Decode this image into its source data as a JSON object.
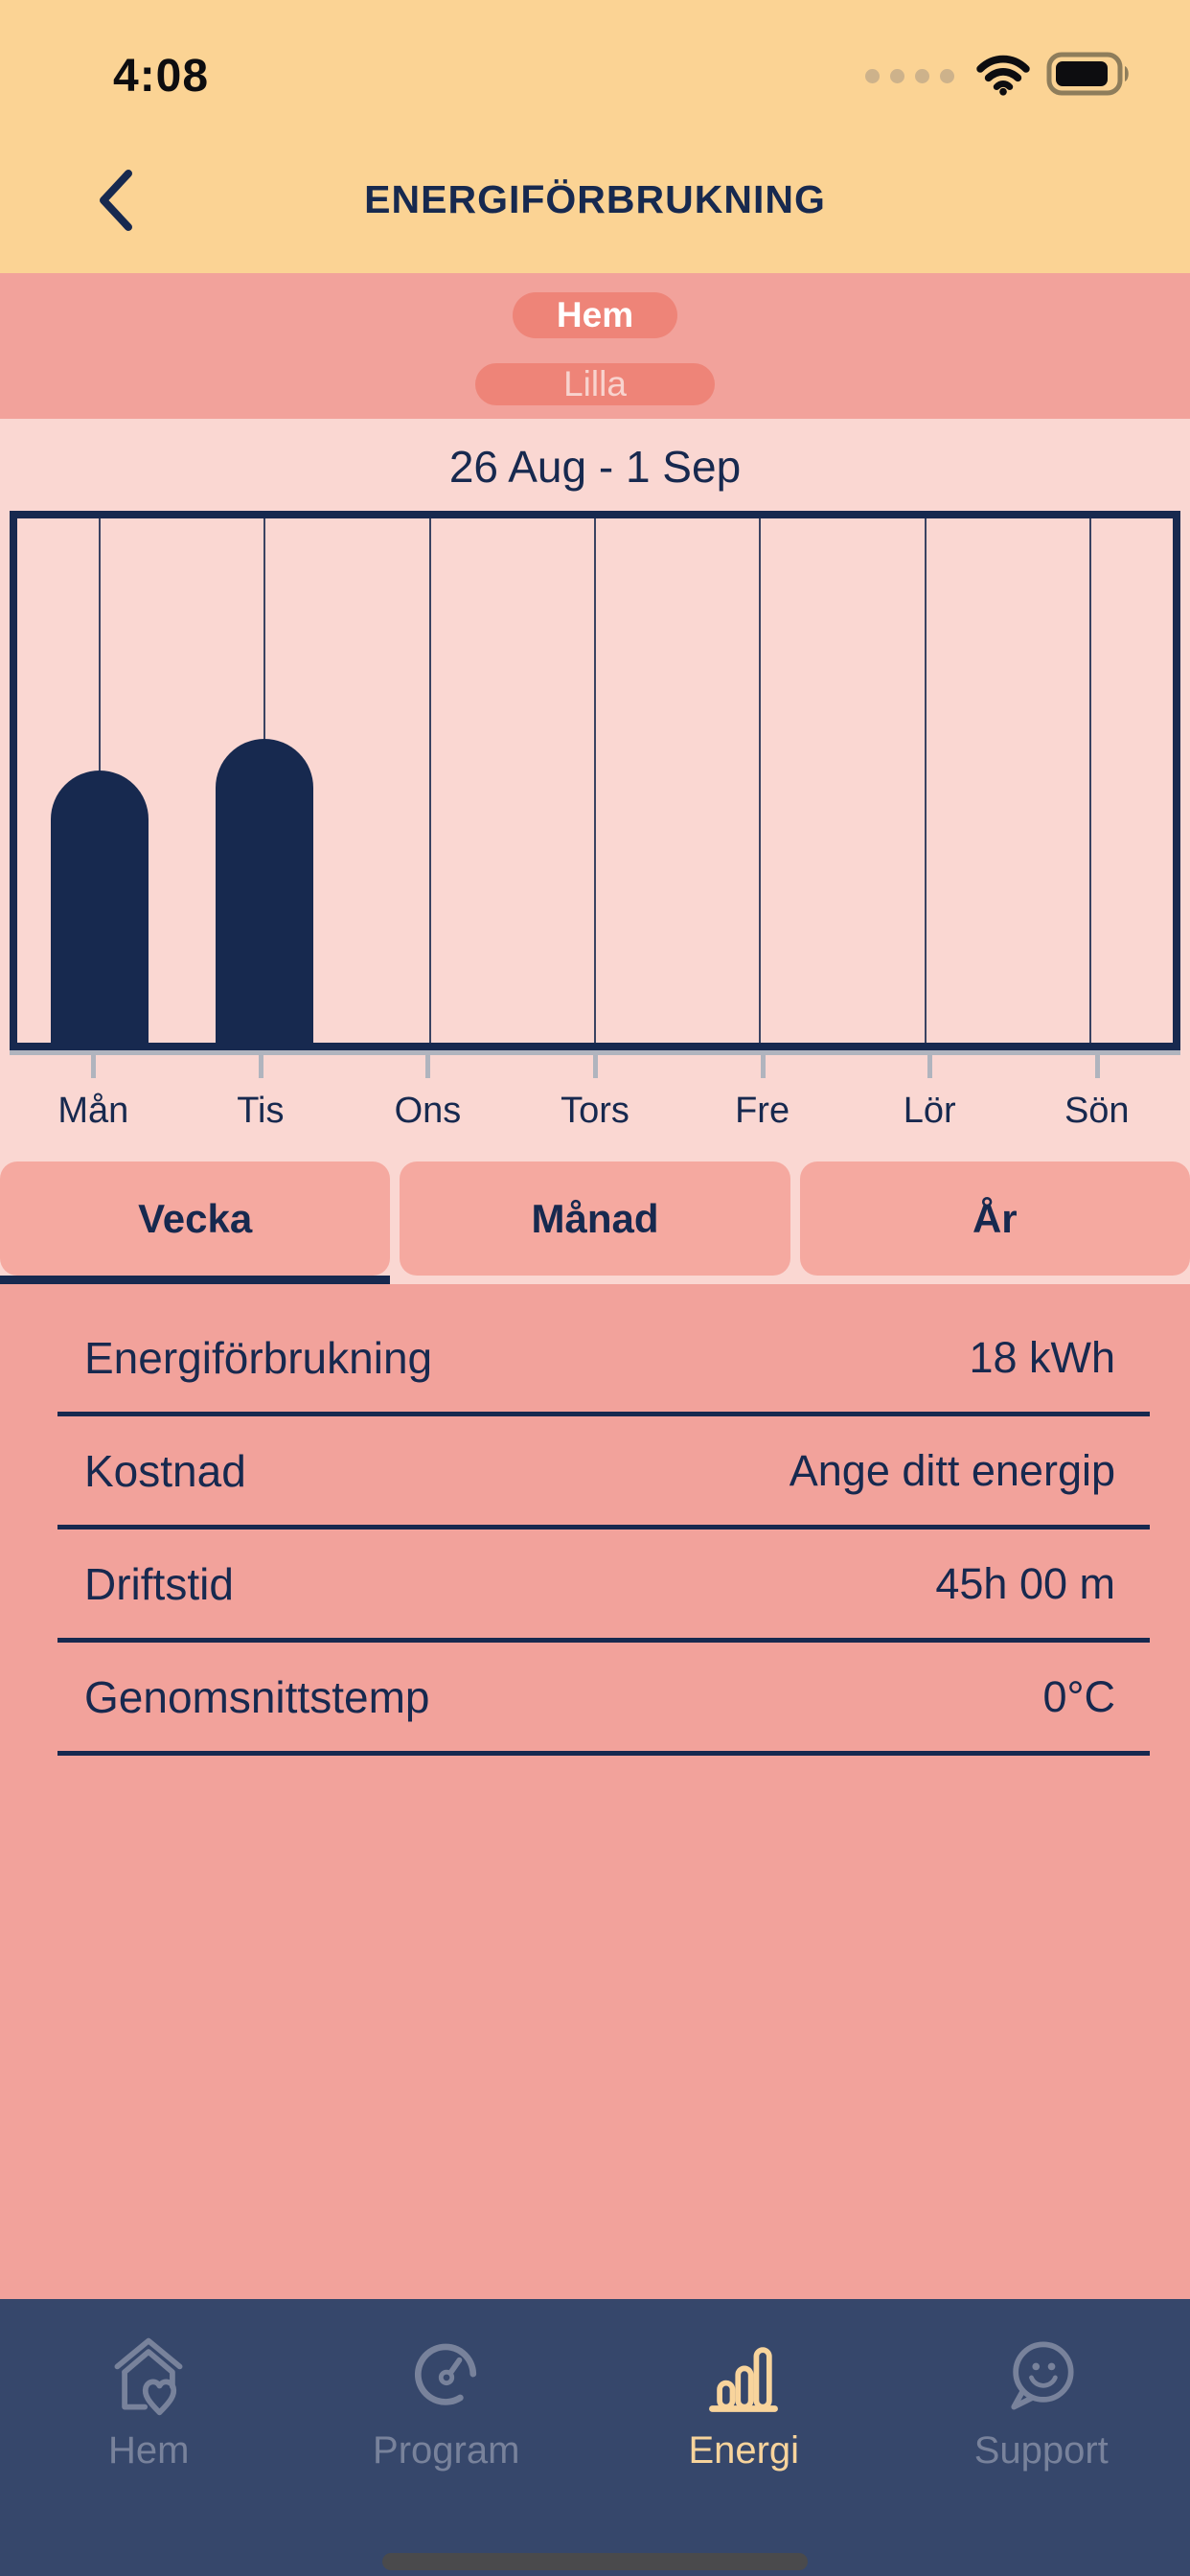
{
  "status_bar": {
    "time": "4:08"
  },
  "header": {
    "title": "ENERGIFÖRBRUKNING"
  },
  "banner": {
    "home_pill": "Hem",
    "device_pill": "Lilla"
  },
  "chart_data": {
    "type": "bar",
    "title": "26 Aug - 1 Sep",
    "categories": [
      "Mån",
      "Tis",
      "Ons",
      "Tors",
      "Fre",
      "Lör",
      "Sön"
    ],
    "values_relative_height_pct": [
      52,
      58,
      0,
      0,
      0,
      0,
      0
    ],
    "week_total_label": "18 kWh",
    "bar_color": "#17294F",
    "plot_background": "#FAD7D2",
    "grid": "vertical-day-lines",
    "ylabel": "",
    "xlabel": ""
  },
  "tabs": [
    {
      "label": "Vecka",
      "active": true
    },
    {
      "label": "Månad",
      "active": false
    },
    {
      "label": "År",
      "active": false
    }
  ],
  "stats": {
    "rows": [
      {
        "label": "Energiförbrukning",
        "value": "18 kWh"
      },
      {
        "label": "Kostnad",
        "value": "Ange ditt energip"
      },
      {
        "label": "Driftstid",
        "value": "45h 00 m"
      },
      {
        "label": "Genomsnittstemp",
        "value": "0°C"
      }
    ]
  },
  "bottom_nav": {
    "items": [
      {
        "label": "Hem",
        "icon": "house-heart-icon",
        "active": false
      },
      {
        "label": "Program",
        "icon": "timer-dial-icon",
        "active": false
      },
      {
        "label": "Energi",
        "icon": "bar-chart-icon",
        "active": true
      },
      {
        "label": "Support",
        "icon": "chat-smiley-icon",
        "active": false
      }
    ]
  },
  "colors": {
    "navy": "#17294F",
    "header_yellow": "#FBD394",
    "salmon": "#F2A29B",
    "pill": "#EE8478",
    "light_pink": "#FAD7D2",
    "tab": "#F5A9A0",
    "nav_background": "#36476B",
    "nav_inactive": "#78829B",
    "nav_active": "#F8D49C"
  }
}
